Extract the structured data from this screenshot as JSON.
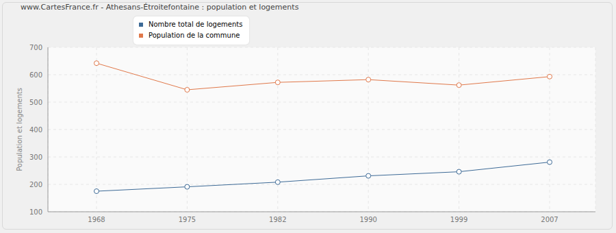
{
  "chart_data": {
    "type": "line",
    "title": "www.CartesFrance.fr - Athesans-Étroitefontaine : population et logements",
    "y_label": "Population et logements",
    "categories": [
      "1968",
      "1975",
      "1982",
      "1990",
      "1999",
      "2007"
    ],
    "series": [
      {
        "name": "Nombre total de logements",
        "color": "#3d6a96",
        "values": [
          175,
          191,
          208,
          231,
          246,
          281
        ],
        "marker": "circle"
      },
      {
        "name": "Population de la commune",
        "color": "#e0784a",
        "values": [
          642,
          545,
          572,
          582,
          562,
          593
        ],
        "marker": "circle"
      }
    ],
    "ylim": [
      100,
      700
    ],
    "yticks": [
      100,
      200,
      300,
      400,
      500,
      600,
      700
    ],
    "grid": true,
    "legend": "top"
  }
}
